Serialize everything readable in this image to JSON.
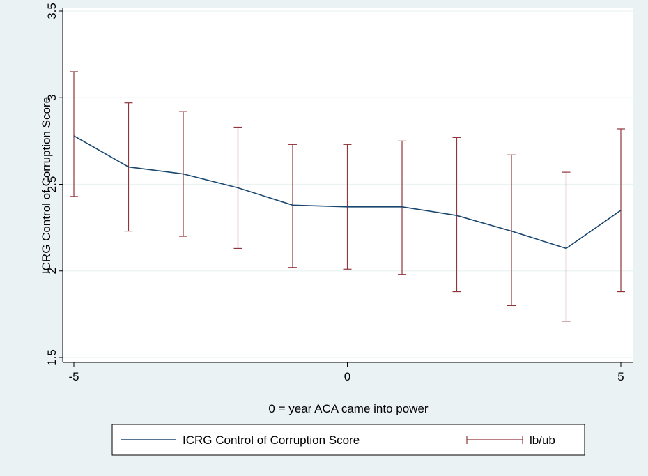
{
  "chart_data": {
    "type": "line",
    "xlabel": "0 = year ACA came into power",
    "ylabel": "ICRG Control of Corruption Score",
    "xlim": [
      -5,
      5
    ],
    "ylim": [
      1.5,
      3.5
    ],
    "xticks": [
      -5,
      0,
      5
    ],
    "yticks": [
      1.5,
      2,
      2.5,
      3,
      3.5
    ],
    "xtick_labels": [
      "-5",
      "0",
      "5"
    ],
    "ytick_labels": [
      "1.5",
      "2",
      "2.5",
      "3",
      "3.5"
    ],
    "grid": true,
    "legend_position": "bottom",
    "x": [
      -5,
      -4,
      -3,
      -2,
      -1,
      0,
      1,
      2,
      3,
      4,
      5
    ],
    "series": [
      {
        "name": "ICRG Control of Corruption Score",
        "type": "line",
        "color": "#1a476f",
        "values": [
          2.78,
          2.6,
          2.56,
          2.48,
          2.38,
          2.37,
          2.37,
          2.32,
          2.23,
          2.13,
          2.35
        ]
      },
      {
        "name": "lb/ub",
        "type": "errorbar",
        "color": "#90353b",
        "lower": [
          2.43,
          2.23,
          2.2,
          2.13,
          2.02,
          2.01,
          1.98,
          1.88,
          1.8,
          1.71,
          1.88
        ],
        "upper": [
          3.15,
          2.97,
          2.92,
          2.83,
          2.73,
          2.73,
          2.75,
          2.77,
          2.67,
          2.57,
          2.82
        ]
      }
    ]
  }
}
